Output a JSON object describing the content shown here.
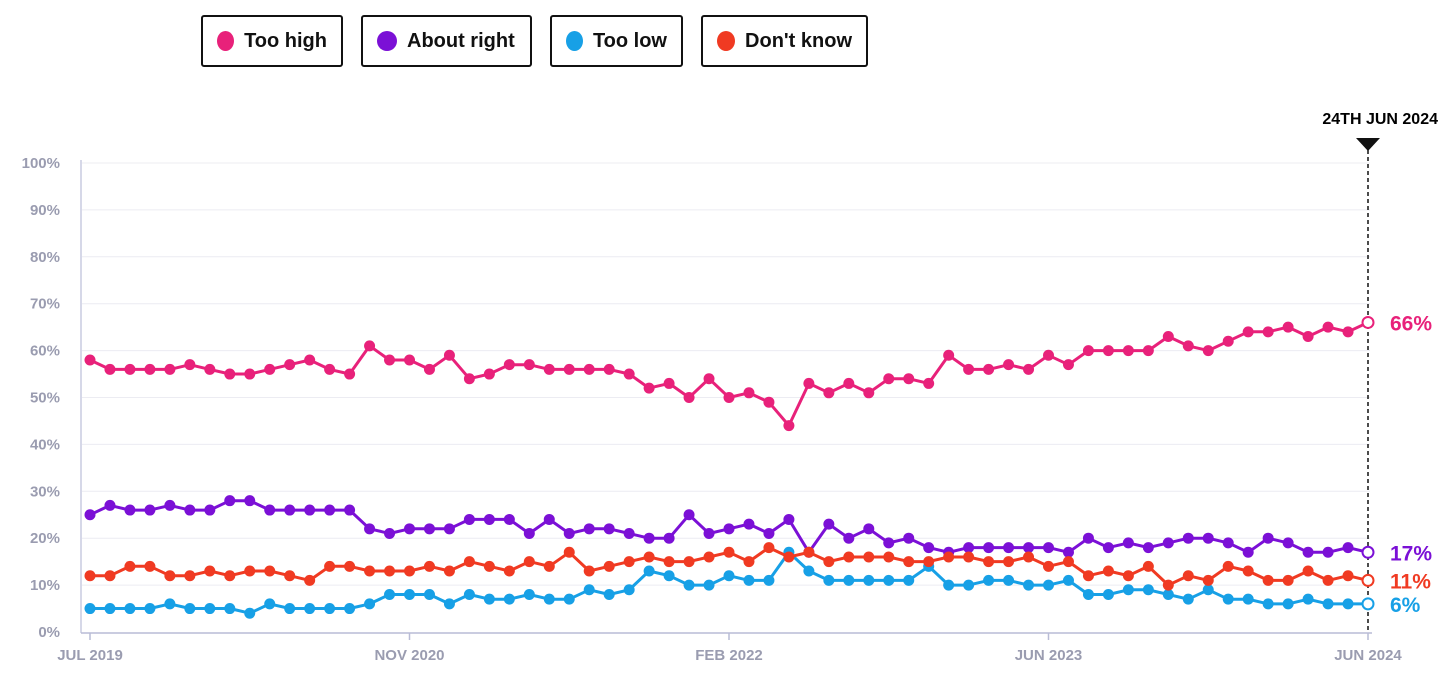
{
  "legend": [
    {
      "label": "Too high",
      "color": "#e8217a"
    },
    {
      "label": "About right",
      "color": "#7b10d6"
    },
    {
      "label": "Too low",
      "color": "#17a0e6"
    },
    {
      "label": "Don't know",
      "color": "#f03a22"
    }
  ],
  "marker": {
    "label": "24TH JUN 2024"
  },
  "chart_data": {
    "type": "line",
    "title": "",
    "xlabel": "",
    "ylabel": "",
    "ylim": [
      0,
      100
    ],
    "y_ticks": [
      "0%",
      "10%",
      "20%",
      "30%",
      "40%",
      "50%",
      "60%",
      "70%",
      "80%",
      "90%",
      "100%"
    ],
    "x_ticks": [
      "JUL 2019",
      "NOV 2020",
      "FEB 2022",
      "JUN 2023",
      "JUN 2024"
    ],
    "grid": true,
    "legend_position": "top-left",
    "series": [
      {
        "name": "Too high",
        "color": "#e8217a",
        "end_label": "66%",
        "values": [
          58,
          56,
          56,
          56,
          56,
          57,
          56,
          55,
          55,
          56,
          57,
          58,
          56,
          55,
          61,
          58,
          58,
          56,
          59,
          54,
          55,
          57,
          57,
          56,
          56,
          56,
          56,
          55,
          52,
          53,
          50,
          54,
          50,
          51,
          49,
          44,
          53,
          51,
          53,
          51,
          54,
          54,
          53,
          59,
          56,
          56,
          57,
          56,
          59,
          57,
          60,
          60,
          60,
          60,
          63,
          61,
          60,
          62,
          64,
          64,
          65,
          63,
          65,
          64,
          66
        ]
      },
      {
        "name": "About right",
        "color": "#7b10d6",
        "end_label": "17%",
        "values": [
          25,
          27,
          26,
          26,
          27,
          26,
          26,
          28,
          28,
          26,
          26,
          26,
          26,
          26,
          22,
          21,
          22,
          22,
          22,
          24,
          24,
          24,
          21,
          24,
          21,
          22,
          22,
          21,
          20,
          20,
          25,
          21,
          22,
          23,
          21,
          24,
          17,
          23,
          20,
          22,
          19,
          20,
          18,
          17,
          18,
          18,
          18,
          18,
          18,
          17,
          20,
          18,
          19,
          18,
          19,
          20,
          20,
          19,
          17,
          20,
          19,
          17,
          17,
          18,
          17
        ]
      },
      {
        "name": "Too low",
        "color": "#17a0e6",
        "end_label": "6%",
        "values": [
          5,
          5,
          5,
          5,
          6,
          5,
          5,
          5,
          4,
          6,
          5,
          5,
          5,
          5,
          6,
          8,
          8,
          8,
          6,
          8,
          7,
          7,
          8,
          7,
          7,
          9,
          8,
          9,
          13,
          12,
          10,
          10,
          12,
          11,
          11,
          17,
          13,
          11,
          11,
          11,
          11,
          11,
          14,
          10,
          10,
          11,
          11,
          10,
          10,
          11,
          8,
          8,
          9,
          9,
          8,
          7,
          9,
          7,
          7,
          6,
          6,
          7,
          6,
          6,
          6
        ]
      },
      {
        "name": "Don't know",
        "color": "#f03a22",
        "end_label": "11%",
        "values": [
          12,
          12,
          14,
          14,
          12,
          12,
          13,
          12,
          13,
          13,
          12,
          11,
          14,
          14,
          13,
          13,
          13,
          14,
          13,
          15,
          14,
          13,
          15,
          14,
          17,
          13,
          14,
          15,
          16,
          15,
          15,
          16,
          17,
          15,
          18,
          16,
          17,
          15,
          16,
          16,
          16,
          15,
          15,
          16,
          16,
          15,
          15,
          16,
          14,
          15,
          12,
          13,
          12,
          14,
          10,
          12,
          11,
          14,
          13,
          11,
          11,
          13,
          11,
          12,
          11
        ]
      }
    ]
  }
}
